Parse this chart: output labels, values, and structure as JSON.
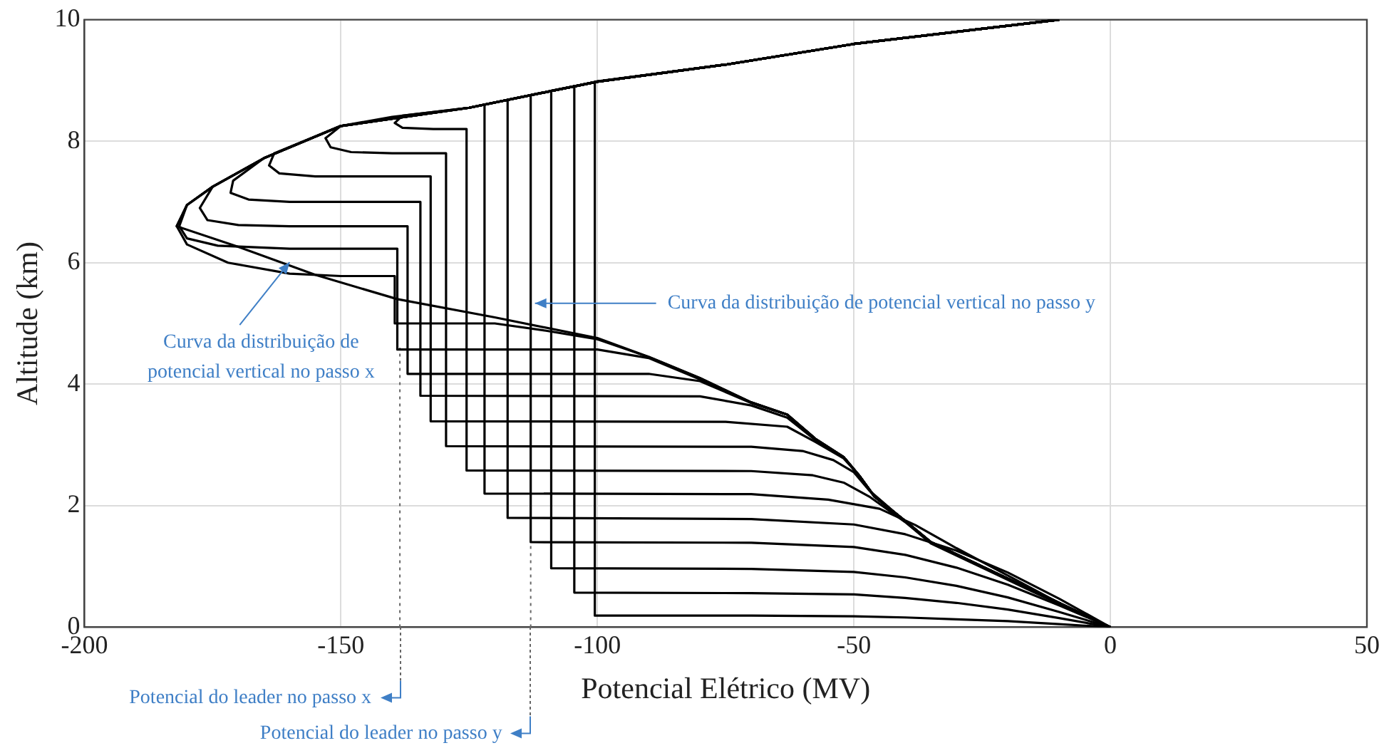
{
  "chart_data": {
    "type": "line",
    "xlabel": "Potencial Elétrico (MV)",
    "ylabel": "Altitude (km)",
    "xlim": [
      -200,
      50
    ],
    "xticks": [
      -200,
      -150,
      -100,
      -50,
      0,
      50
    ],
    "ylim": [
      0,
      10
    ],
    "yticks": [
      0,
      2,
      4,
      6,
      8,
      10
    ],
    "grid": true,
    "marker": "none",
    "line_style": "solid",
    "series": [
      {
        "color": "#000000",
        "x": [
          -10,
          -30,
          -50,
          -75,
          -100,
          -125,
          -150,
          -165,
          -175,
          -180,
          -182,
          -170,
          -155,
          -139,
          -120,
          -100,
          -90,
          -80,
          -70,
          -63,
          -57.5,
          -52,
          -49,
          -46,
          -40,
          -35,
          -25,
          -15,
          0
        ],
        "values": [
          10,
          9.8,
          9.6,
          9.26,
          8.98,
          8.55,
          8.25,
          7.72,
          7.25,
          6.95,
          6.6,
          6.26,
          5.8,
          5.4,
          5.1,
          4.76,
          4.45,
          4.1,
          3.7,
          3.5,
          3.1,
          2.8,
          2.5,
          2.15,
          1.75,
          1.4,
          1.0,
          0.6,
          0
        ]
      },
      {
        "color": "#000000",
        "x": [
          -10,
          -30,
          -50,
          -75,
          -100,
          -125,
          -150,
          -165,
          -175,
          -180,
          -182,
          -180,
          -172,
          -160,
          -150,
          -139.5,
          -139.5,
          -120,
          -110,
          -100,
          -90,
          -80,
          -70,
          -63,
          -57.5,
          -52,
          -49,
          -46,
          -40,
          -35,
          -25,
          -15,
          0
        ],
        "values": [
          10,
          9.8,
          9.6,
          9.26,
          8.98,
          8.55,
          8.25,
          7.72,
          7.25,
          6.95,
          6.6,
          6.3,
          6.0,
          5.82,
          5.78,
          5.78,
          5.0,
          5.0,
          4.88,
          4.74,
          4.45,
          4.1,
          3.7,
          3.5,
          3.1,
          2.8,
          2.5,
          2.15,
          1.75,
          1.4,
          1.0,
          0.6,
          0
        ]
      },
      {
        "color": "#000000",
        "x": [
          -10,
          -30,
          -50,
          -75,
          -100,
          -125,
          -150,
          -165,
          -175,
          -180,
          -181.5,
          -180,
          -174,
          -160,
          -139,
          -139,
          -100,
          -90,
          -80,
          -70,
          -63,
          -57.5,
          -52,
          -49,
          -46,
          -40,
          -35,
          -25,
          -15,
          0
        ],
        "values": [
          10,
          9.8,
          9.6,
          9.26,
          8.98,
          8.55,
          8.25,
          7.72,
          7.25,
          6.95,
          6.6,
          6.4,
          6.28,
          6.23,
          6.23,
          4.57,
          4.57,
          4.43,
          4.08,
          3.7,
          3.5,
          3.1,
          2.8,
          2.5,
          2.15,
          1.75,
          1.4,
          1.0,
          0.6,
          0
        ]
      },
      {
        "color": "#000000",
        "x": [
          -10,
          -30,
          -50,
          -75,
          -100,
          -125,
          -150,
          -165,
          -175,
          -177.5,
          -176,
          -170,
          -160,
          -137,
          -137,
          -90,
          -80,
          -70,
          -63,
          -57.5,
          -52,
          -49,
          -46,
          -40,
          -35,
          -25,
          -15,
          0
        ],
        "values": [
          10,
          9.8,
          9.6,
          9.26,
          8.98,
          8.55,
          8.25,
          7.72,
          7.25,
          6.9,
          6.7,
          6.62,
          6.6,
          6.6,
          4.17,
          4.17,
          4.05,
          3.69,
          3.5,
          3.1,
          2.8,
          2.5,
          2.15,
          1.75,
          1.4,
          1.0,
          0.6,
          0
        ]
      },
      {
        "color": "#000000",
        "x": [
          -10,
          -30,
          -50,
          -75,
          -100,
          -125,
          -150,
          -165,
          -171,
          -171.5,
          -168,
          -160,
          -134.5,
          -134.5,
          -80,
          -70,
          -63,
          -57.5,
          -52,
          -49,
          -46,
          -40,
          -35,
          -25,
          -15,
          0
        ],
        "values": [
          10,
          9.8,
          9.6,
          9.26,
          8.98,
          8.55,
          8.25,
          7.72,
          7.35,
          7.15,
          7.04,
          7.0,
          7.0,
          3.81,
          3.8,
          3.65,
          3.45,
          3.08,
          2.8,
          2.5,
          2.15,
          1.75,
          1.4,
          1.0,
          0.6,
          0
        ]
      },
      {
        "color": "#000000",
        "x": [
          -10,
          -30,
          -50,
          -75,
          -100,
          -125,
          -150,
          -163,
          -164,
          -162,
          -155,
          -132.5,
          -132.5,
          -75,
          -63,
          -57.5,
          -52,
          -49,
          -46,
          -40,
          -35,
          -25,
          -15,
          0
        ],
        "values": [
          10,
          9.8,
          9.6,
          9.26,
          8.98,
          8.55,
          8.25,
          7.8,
          7.6,
          7.47,
          7.42,
          7.42,
          3.39,
          3.38,
          3.3,
          3.05,
          2.78,
          2.5,
          2.15,
          1.75,
          1.4,
          1.0,
          0.6,
          0
        ]
      },
      {
        "color": "#000000",
        "x": [
          -10,
          -30,
          -50,
          -75,
          -100,
          -125,
          -140,
          -150,
          -153,
          -152,
          -148,
          -140,
          -129.5,
          -129.5,
          -70,
          -60,
          -54,
          -50,
          -47,
          -40,
          -35,
          -25,
          -15,
          0
        ],
        "values": [
          10,
          9.8,
          9.6,
          9.26,
          8.98,
          8.55,
          8.4,
          8.25,
          8.05,
          7.9,
          7.82,
          7.8,
          7.8,
          2.98,
          2.97,
          2.9,
          2.75,
          2.55,
          2.25,
          1.74,
          1.39,
          0.99,
          0.59,
          0
        ]
      },
      {
        "color": "#000000",
        "x": [
          -10,
          -30,
          -50,
          -75,
          -100,
          -125,
          -138,
          -139.5,
          -138,
          -132,
          -125.5,
          -125.5,
          -70,
          -58,
          -52,
          -47,
          -40,
          -35,
          -25,
          -15,
          0
        ],
        "values": [
          10,
          9.8,
          9.6,
          9.26,
          8.98,
          8.55,
          8.42,
          8.3,
          8.22,
          8.2,
          8.2,
          2.58,
          2.57,
          2.5,
          2.38,
          2.15,
          1.73,
          1.38,
          0.98,
          0.58,
          0
        ]
      },
      {
        "color": "#000000",
        "x": [
          -10,
          -30,
          -50,
          -75,
          -100,
          -122,
          -122,
          -70,
          -55,
          -45,
          -38,
          -30,
          -20,
          -10,
          0
        ],
        "values": [
          10,
          9.8,
          9.6,
          9.26,
          8.98,
          8.6,
          2.2,
          2.19,
          2.1,
          1.95,
          1.68,
          1.3,
          0.85,
          0.4,
          0
        ]
      },
      {
        "color": "#000000",
        "x": [
          -10,
          -30,
          -50,
          -75,
          -100,
          -117.5,
          -117.5,
          -70,
          -50,
          -40,
          -30,
          -20,
          -10,
          0
        ],
        "values": [
          10,
          9.8,
          9.6,
          9.26,
          8.98,
          8.68,
          1.8,
          1.78,
          1.69,
          1.53,
          1.26,
          0.9,
          0.47,
          0
        ]
      },
      {
        "color": "#000000",
        "x": [
          -10,
          -30,
          -50,
          -75,
          -100,
          -113,
          -113,
          -70,
          -50,
          -40,
          -30,
          -20,
          -10,
          0
        ],
        "values": [
          10,
          9.8,
          9.6,
          9.26,
          8.98,
          8.76,
          1.4,
          1.39,
          1.32,
          1.19,
          0.98,
          0.7,
          0.36,
          0
        ]
      },
      {
        "color": "#000000",
        "x": [
          -10,
          -30,
          -50,
          -75,
          -100,
          -109,
          -109,
          -70,
          -50,
          -40,
          -30,
          -20,
          -10,
          0
        ],
        "values": [
          10,
          9.8,
          9.6,
          9.26,
          8.98,
          8.83,
          0.97,
          0.96,
          0.91,
          0.82,
          0.68,
          0.49,
          0.25,
          0
        ]
      },
      {
        "color": "#000000",
        "x": [
          -10,
          -30,
          -50,
          -75,
          -100,
          -104.5,
          -104.5,
          -70,
          -50,
          -40,
          -30,
          -20,
          -10,
          0
        ],
        "values": [
          10,
          9.8,
          9.6,
          9.26,
          8.98,
          8.9,
          0.57,
          0.56,
          0.54,
          0.48,
          0.4,
          0.29,
          0.15,
          0
        ]
      },
      {
        "color": "#000000",
        "x": [
          -10,
          -30,
          -50,
          -75,
          -100.5,
          -100.5,
          -70,
          -50,
          -40,
          -30,
          -20,
          -10,
          0
        ],
        "values": [
          10,
          9.8,
          9.6,
          9.26,
          8.98,
          0.19,
          0.19,
          0.18,
          0.16,
          0.13,
          0.1,
          0.05,
          0
        ]
      },
      {
        "color": "#666666",
        "line_style": "dotted",
        "x": [
          -138.5,
          -138.5
        ],
        "values": [
          0,
          4.6
        ]
      },
      {
        "color": "#666666",
        "line_style": "dotted",
        "x": [
          -113,
          -113
        ],
        "values": [
          0,
          1.37
        ]
      }
    ],
    "annotations": [
      {
        "text": "Curva da distribuição de potencial vertical no passo x",
        "x": -160,
        "y": 6.1
      },
      {
        "text": "Curva da distribuição de potencial vertical no passo y",
        "x": -113,
        "y": 5.33
      },
      "Potencial do leader no passo x",
      "Potencial do leader no passo y"
    ]
  }
}
